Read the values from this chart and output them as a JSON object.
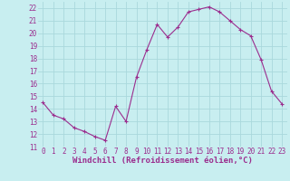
{
  "hours": [
    0,
    1,
    2,
    3,
    4,
    5,
    6,
    7,
    8,
    9,
    10,
    11,
    12,
    13,
    14,
    15,
    16,
    17,
    18,
    19,
    20,
    21,
    22,
    23
  ],
  "values": [
    14.5,
    13.5,
    13.2,
    12.5,
    12.2,
    11.8,
    11.5,
    14.2,
    13.0,
    16.5,
    18.7,
    20.7,
    19.7,
    20.5,
    21.7,
    21.9,
    22.1,
    21.7,
    21.0,
    20.3,
    19.8,
    17.9,
    15.4,
    14.4
  ],
  "line_color": "#9b2d8e",
  "marker": "+",
  "bg_color": "#c8eef0",
  "grid_color": "#aad8dc",
  "xlabel": "Windchill (Refroidissement éolien,°C)",
  "xlabel_color": "#9b2d8e",
  "tick_color": "#9b2d8e",
  "ylim": [
    11,
    22.5
  ],
  "yticks": [
    11,
    12,
    13,
    14,
    15,
    16,
    17,
    18,
    19,
    20,
    21,
    22
  ],
  "xlim": [
    -0.5,
    23.5
  ],
  "xticks": [
    0,
    1,
    2,
    3,
    4,
    5,
    6,
    7,
    8,
    9,
    10,
    11,
    12,
    13,
    14,
    15,
    16,
    17,
    18,
    19,
    20,
    21,
    22,
    23
  ],
  "xtick_labels": [
    "0",
    "1",
    "2",
    "3",
    "4",
    "5",
    "6",
    "7",
    "8",
    "9",
    "10",
    "11",
    "12",
    "13",
    "14",
    "15",
    "16",
    "17",
    "18",
    "19",
    "20",
    "21",
    "22",
    "23"
  ],
  "ytick_labels": [
    "11",
    "12",
    "13",
    "14",
    "15",
    "16",
    "17",
    "18",
    "19",
    "20",
    "21",
    "22"
  ],
  "font_family": "monospace",
  "font_size_ticks": 5.5,
  "font_size_xlabel": 6.5
}
